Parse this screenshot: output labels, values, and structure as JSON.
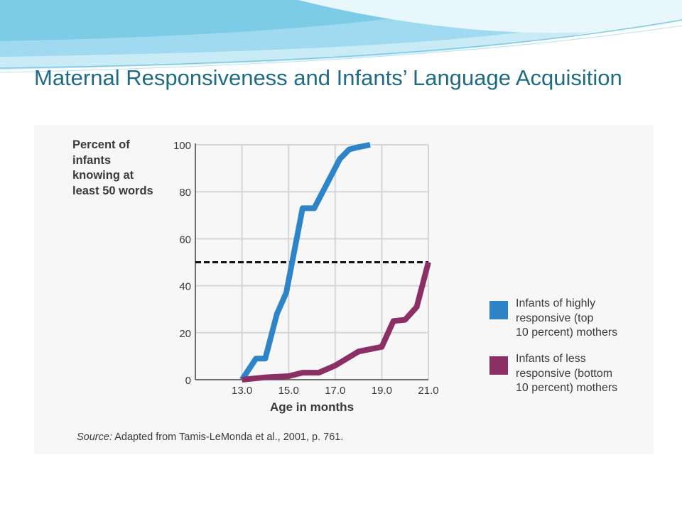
{
  "slide": {
    "title": "Maternal Responsiveness and Infants’ Language Acquisition"
  },
  "colors": {
    "title": "#1d6b84",
    "series_high": "#2d84c8",
    "series_low": "#8c2f64",
    "threshold_line": "#111111",
    "grid": "#d6d6d6",
    "banner": "#a9dff0"
  },
  "chart_data": {
    "type": "line",
    "ylabel_lines": [
      "Percent of",
      "infants",
      "knowing at",
      "least 50 words"
    ],
    "xlabel": "Age in months",
    "x_ticks": [
      13.0,
      15.0,
      17.0,
      19.0,
      21.0
    ],
    "x_tick_labels": [
      "13.0",
      "15.0",
      "17.0",
      "19.0",
      "21.0"
    ],
    "y_ticks": [
      0,
      20,
      40,
      60,
      80,
      100
    ],
    "y_tick_labels": [
      "0",
      "20",
      "40",
      "60",
      "80",
      "100"
    ],
    "xlim": [
      11.0,
      21.0
    ],
    "ylim": [
      0,
      100
    ],
    "grid": true,
    "threshold": 50,
    "legend_position": "right",
    "series": [
      {
        "name": "Infants of highly responsive (top 10 percent) mothers",
        "legend_lines": [
          "Infants of highly",
          "responsive (top",
          "10 percent) mothers"
        ],
        "color": "#2d84c8",
        "points": [
          [
            13.0,
            0
          ],
          [
            13.6,
            9
          ],
          [
            14.0,
            9
          ],
          [
            14.5,
            28
          ],
          [
            14.9,
            37
          ],
          [
            15.6,
            73
          ],
          [
            16.1,
            73
          ],
          [
            17.2,
            94
          ],
          [
            17.6,
            98
          ],
          [
            18.0,
            99
          ],
          [
            18.5,
            100
          ]
        ]
      },
      {
        "name": "Infants of less responsive (bottom 10 percent) mothers",
        "legend_lines": [
          "Infants of less",
          "responsive (bottom",
          "10 percent) mothers"
        ],
        "color": "#8c2f64",
        "points": [
          [
            13.0,
            0
          ],
          [
            14.0,
            1
          ],
          [
            15.0,
            1.5
          ],
          [
            15.6,
            3
          ],
          [
            16.3,
            3
          ],
          [
            17.0,
            6
          ],
          [
            18.0,
            12
          ],
          [
            19.0,
            14
          ],
          [
            19.5,
            25
          ],
          [
            20.0,
            25.5
          ],
          [
            20.5,
            31
          ],
          [
            21.0,
            50
          ]
        ]
      }
    ],
    "source_label": "Source:",
    "source_text": " Adapted from Tamis-LeMonda et al., 2001, p. 761."
  }
}
